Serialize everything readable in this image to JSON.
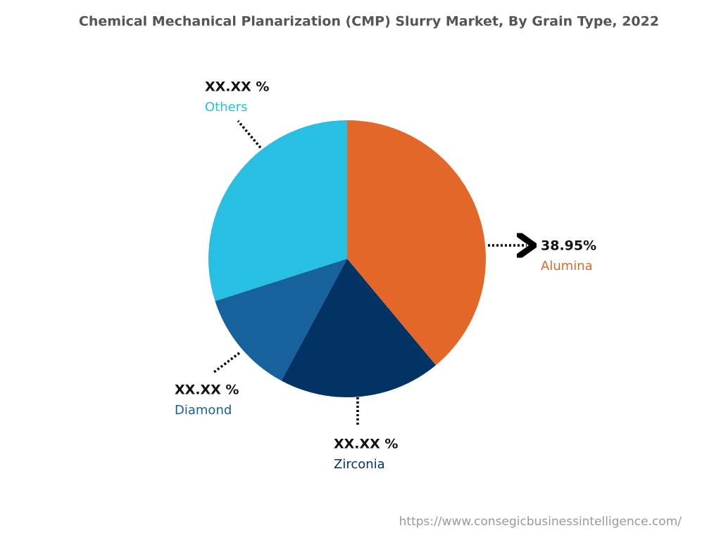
{
  "chart_data": {
    "type": "pie",
    "title": "Chemical Mechanical Planarization (CMP) Slurry Market, By Grain Type, 2022",
    "categories": [
      "Alumina",
      "Zirconia",
      "Diamond",
      "Others"
    ],
    "values": [
      38.95,
      18.9,
      12.2,
      29.95
    ],
    "value_labels": [
      "38.95%",
      "XX.XX %",
      "XX.XX %",
      "XX.XX %"
    ],
    "colors": [
      "#e4672a",
      "#023364",
      "#17619c",
      "#29bfe3"
    ],
    "source": "https://www.consegicbusinessintelligence.com/"
  }
}
